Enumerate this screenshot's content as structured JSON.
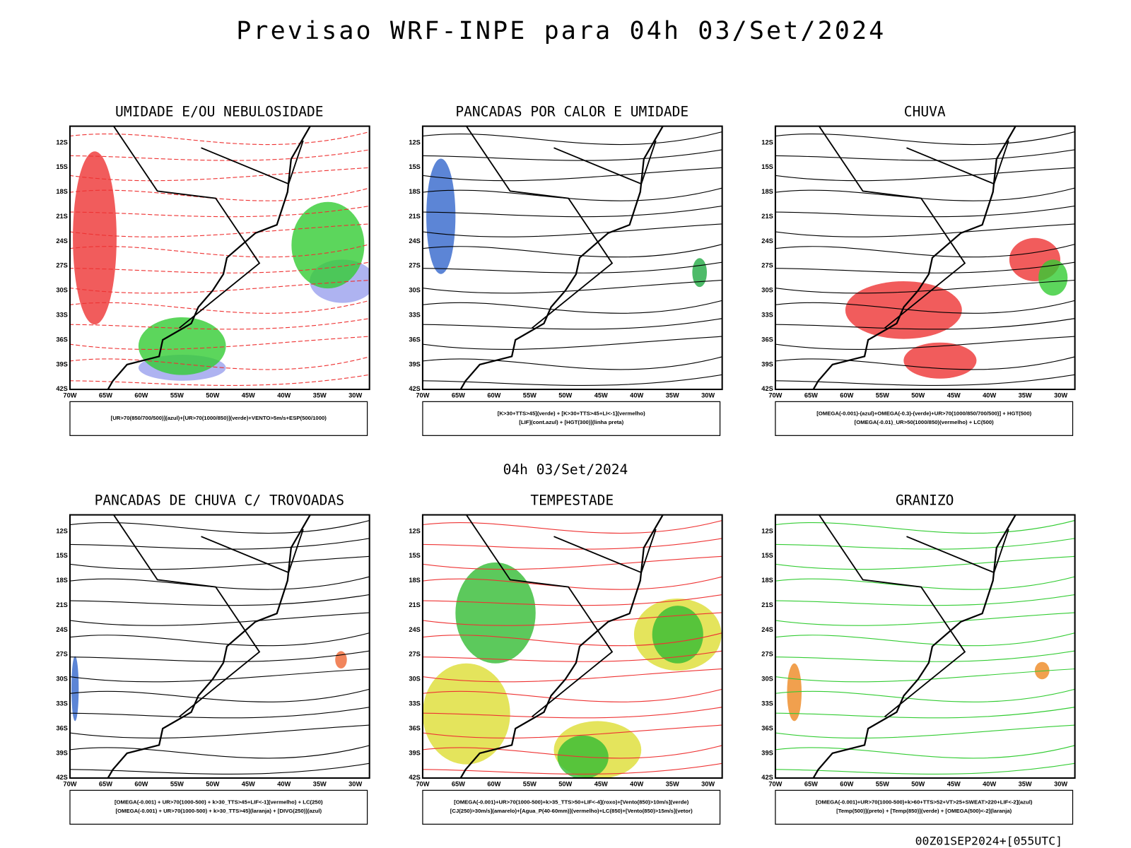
{
  "header": {
    "title": "Previsao WRF-INPE  para 04h 03/Set/2024",
    "subtitle": "04h 03/Set/2024",
    "footer": "00Z01SEP2024+[055UTC]"
  },
  "lat_labels": [
    "12S",
    "15S",
    "18S",
    "21S",
    "24S",
    "27S",
    "30S",
    "33S",
    "36S",
    "39S",
    "42S"
  ],
  "lon_labels": [
    "70W",
    "65W",
    "60W",
    "55W",
    "50W",
    "45W",
    "40W",
    "35W",
    "30W"
  ],
  "panels": [
    {
      "title": "UMIDADE E/OU NEBULOSIDADE",
      "legend": [
        "[UR>70(850/700/500)](azul)+[UR>70(1000/850)](verde)+VENTO>5m/s+ESP(500/1000)"
      ]
    },
    {
      "title": "PANCADAS POR CALOR E UMIDADE",
      "legend": [
        "[K>30+TTS>45](verde) + [K>30+TTS>45+LI<-1](vermelho)",
        "[LIF](cont.azul) + [HGT(300)](linha preta)"
      ]
    },
    {
      "title": "CHUVA",
      "legend": [
        "[OMEGA(-0.001)-(azul)+OMEGA(-0.3)-(verde)+UR>70(1000/850/700/500)] + HGT(500)",
        "[OMEGA(-0.01)_UR>50(1000/850)(vermelho) + LC(500)"
      ]
    },
    {
      "title": "PANCADAS DE CHUVA C/ TROVOADAS",
      "legend": [
        "[OMEGA(-0.001) + UR>70(1000-500) + k>30_TTS>45+LIF<-1](vermelho) + LC(250)",
        "[OMEGA(-0.001) + UR>70(1000-500) + k>30_TTS>45](laranja) + [DIVG(250)](azul)"
      ]
    },
    {
      "title": "TEMPESTADE",
      "legend": [
        "[OMEGA(-0.001)+UR>70(1000-500)+k>35_TTS>50+LIF<-4](roxo)+[Vento(850)>10m/s](verde)",
        "[CJ(250)>30m/s](amarelo)+[Agua_P(40-60mm)](vermelho)+LC(850)+[Vento(850)>15m/s](vetor)"
      ]
    },
    {
      "title": "GRANIZO",
      "legend": [
        "[OMEGA(-0.001)+UR>70(1000-500)+k>60+TTS>52+VT>25+SWEAT>220+LIF<-2](azul)",
        "[Temp(500)](preto) + [Temp(850)](verde) + [OMEGA(500)<-2](laranja)"
      ]
    }
  ]
}
